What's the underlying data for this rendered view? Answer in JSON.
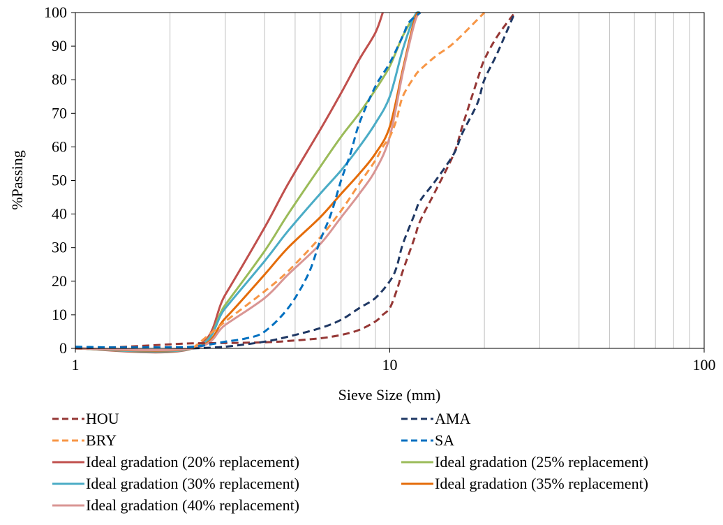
{
  "chart_data": {
    "type": "line",
    "title": "",
    "xlabel": "Sieve Size (mm)",
    "ylabel": "%Passing",
    "x_scale": "log",
    "xlim": [
      1,
      100
    ],
    "ylim": [
      0,
      100
    ],
    "x_ticks": [
      "1",
      "10",
      "100"
    ],
    "y_ticks": [
      "0",
      "10",
      "20",
      "30",
      "40",
      "50",
      "60",
      "70",
      "80",
      "90",
      "100"
    ],
    "grid": "vertical minor",
    "legend_position": "bottom",
    "series": [
      {
        "name": "HOU",
        "color": "#953735",
        "dash": "dashed",
        "x": [
          1,
          1.3,
          1.6,
          2,
          2.36,
          3,
          4,
          4.75,
          6,
          7,
          8,
          9,
          9.5,
          10,
          10.5,
          11,
          12,
          12.5,
          14,
          16,
          17,
          19,
          20,
          22,
          25
        ],
        "y": [
          0,
          0.3,
          0.7,
          1.2,
          1.5,
          1.6,
          1.8,
          2.2,
          3,
          4,
          5.5,
          8,
          10,
          12,
          17,
          23,
          33,
          38,
          47,
          58,
          66,
          80,
          86,
          93,
          100
        ]
      },
      {
        "name": "AMA",
        "color": "#1f3864",
        "dash": "dashed",
        "x": [
          2.36,
          3,
          4,
          4.75,
          6,
          7,
          8,
          9,
          10,
          10.5,
          11,
          12,
          12.5,
          14,
          16,
          17,
          19,
          20,
          22,
          25
        ],
        "y": [
          0,
          0.5,
          2,
          3.5,
          6,
          8.5,
          12,
          15,
          20,
          24,
          31,
          40,
          44,
          50,
          58,
          64,
          73,
          80,
          88,
          100
        ]
      },
      {
        "name": "BRY",
        "color": "#f79646",
        "dash": "dashed",
        "x": [
          2.36,
          3,
          4,
          4.75,
          6,
          7,
          8,
          9,
          9.5,
          10,
          10.5,
          11,
          12,
          12.5,
          14,
          16,
          20
        ],
        "y": [
          0,
          8,
          17,
          23,
          33,
          41,
          49,
          56,
          60,
          63,
          68,
          75,
          81,
          83,
          87,
          91,
          100
        ]
      },
      {
        "name": "SA",
        "color": "#0070c0",
        "dash": "dashed",
        "x": [
          1,
          1.3,
          1.6,
          2.36,
          3,
          3.5,
          4,
          4.75,
          5.5,
          6,
          6.5,
          7,
          7.5,
          8,
          9,
          10,
          11,
          11.5,
          12.5
        ],
        "y": [
          0.5,
          0.3,
          0.3,
          0.5,
          2,
          3,
          5,
          12,
          22,
          32,
          40,
          50,
          58,
          67,
          78,
          85,
          93,
          97,
          100
        ]
      },
      {
        "name": "Ideal gradation (20% replacement)",
        "color": "#c0504d",
        "dash": "solid",
        "x": [
          1,
          2.36,
          3,
          4,
          4.75,
          6,
          7,
          8,
          9,
          9.5
        ],
        "y": [
          0,
          0,
          16,
          36,
          49,
          65,
          76,
          86,
          94,
          100
        ]
      },
      {
        "name": "Ideal gradation (25% replacement)",
        "color": "#9bbb59",
        "dash": "solid",
        "x": [
          1,
          2.36,
          3,
          4,
          4.75,
          6,
          7,
          8,
          9,
          10,
          11,
          12,
          12.5
        ],
        "y": [
          0,
          0,
          13,
          29,
          40,
          54,
          63,
          70,
          77,
          84,
          93,
          99,
          100
        ]
      },
      {
        "name": "Ideal gradation (30% replacement)",
        "color": "#4bacc6",
        "dash": "solid",
        "x": [
          1,
          2.36,
          3,
          4,
          4.75,
          6,
          7,
          8,
          9,
          10,
          11,
          12,
          12.5
        ],
        "y": [
          0,
          0,
          12,
          26,
          35,
          46,
          53,
          60,
          67,
          75,
          89,
          99,
          100
        ]
      },
      {
        "name": "Ideal gradation (35% replacement)",
        "color": "#e46c0a",
        "dash": "solid",
        "x": [
          1,
          2.36,
          3,
          4,
          4.75,
          6,
          7,
          8,
          9,
          10,
          11,
          12,
          12.5
        ],
        "y": [
          0,
          0,
          9,
          22,
          30,
          39,
          46,
          52,
          58,
          66,
          83,
          98,
          100
        ]
      },
      {
        "name": "Ideal gradation (40% replacement)",
        "color": "#d99694",
        "dash": "solid",
        "x": [
          1,
          2.36,
          3,
          4,
          4.75,
          6,
          7,
          8,
          9,
          10,
          11,
          12,
          12.5
        ],
        "y": [
          0,
          0,
          7,
          15,
          22,
          31,
          39,
          46,
          53,
          63,
          82,
          97,
          100
        ]
      }
    ]
  }
}
